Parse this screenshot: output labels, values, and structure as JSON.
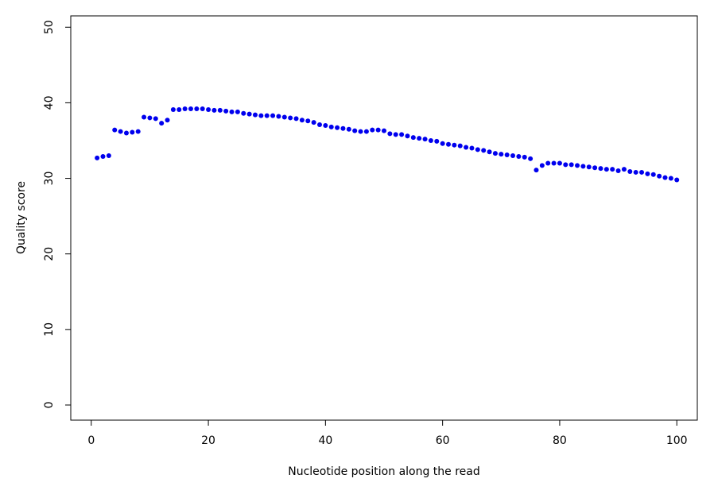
{
  "chart_data": {
    "type": "scatter",
    "title": "",
    "xlabel": "Nucleotide position along the read",
    "ylabel": "Quality score",
    "xlim": [
      -3.5,
      103.5
    ],
    "ylim": [
      -2,
      51.5
    ],
    "xticks": [
      0,
      20,
      40,
      60,
      80,
      100
    ],
    "yticks": [
      0,
      10,
      20,
      30,
      40,
      50
    ],
    "grid": false,
    "legend": "none",
    "point_color": "#0000ee",
    "x": [
      1,
      2,
      3,
      4,
      5,
      6,
      7,
      8,
      9,
      10,
      11,
      12,
      13,
      14,
      15,
      16,
      17,
      18,
      19,
      20,
      21,
      22,
      23,
      24,
      25,
      26,
      27,
      28,
      29,
      30,
      31,
      32,
      33,
      34,
      35,
      36,
      37,
      38,
      39,
      40,
      41,
      42,
      43,
      44,
      45,
      46,
      47,
      48,
      49,
      50,
      51,
      52,
      53,
      54,
      55,
      56,
      57,
      58,
      59,
      60,
      61,
      62,
      63,
      64,
      65,
      66,
      67,
      68,
      69,
      70,
      71,
      72,
      73,
      74,
      75,
      76,
      77,
      78,
      79,
      80,
      81,
      82,
      83,
      84,
      85,
      86,
      87,
      88,
      89,
      90,
      91,
      92,
      93,
      94,
      95,
      96,
      97,
      98,
      99,
      100
    ],
    "y": [
      32.7,
      32.9,
      33.0,
      36.4,
      36.2,
      36.0,
      36.1,
      36.2,
      38.1,
      38.0,
      37.9,
      37.3,
      37.7,
      39.1,
      39.1,
      39.2,
      39.2,
      39.2,
      39.2,
      39.1,
      39.0,
      39.0,
      38.9,
      38.8,
      38.8,
      38.6,
      38.5,
      38.4,
      38.3,
      38.3,
      38.3,
      38.2,
      38.1,
      38.0,
      37.9,
      37.7,
      37.6,
      37.4,
      37.1,
      37.0,
      36.8,
      36.7,
      36.6,
      36.5,
      36.3,
      36.2,
      36.2,
      36.4,
      36.4,
      36.3,
      35.9,
      35.8,
      35.8,
      35.6,
      35.4,
      35.3,
      35.2,
      35.0,
      34.9,
      34.6,
      34.5,
      34.4,
      34.3,
      34.1,
      34.0,
      33.8,
      33.7,
      33.5,
      33.3,
      33.2,
      33.1,
      33.0,
      32.9,
      32.8,
      32.6,
      31.1,
      31.7,
      32.0,
      32.0,
      32.0,
      31.8,
      31.8,
      31.7,
      31.6,
      31.5,
      31.4,
      31.3,
      31.2,
      31.2,
      31.0,
      31.2,
      30.9,
      30.8,
      30.8,
      30.6,
      30.5,
      30.3,
      30.1,
      30.0,
      29.8
    ]
  }
}
